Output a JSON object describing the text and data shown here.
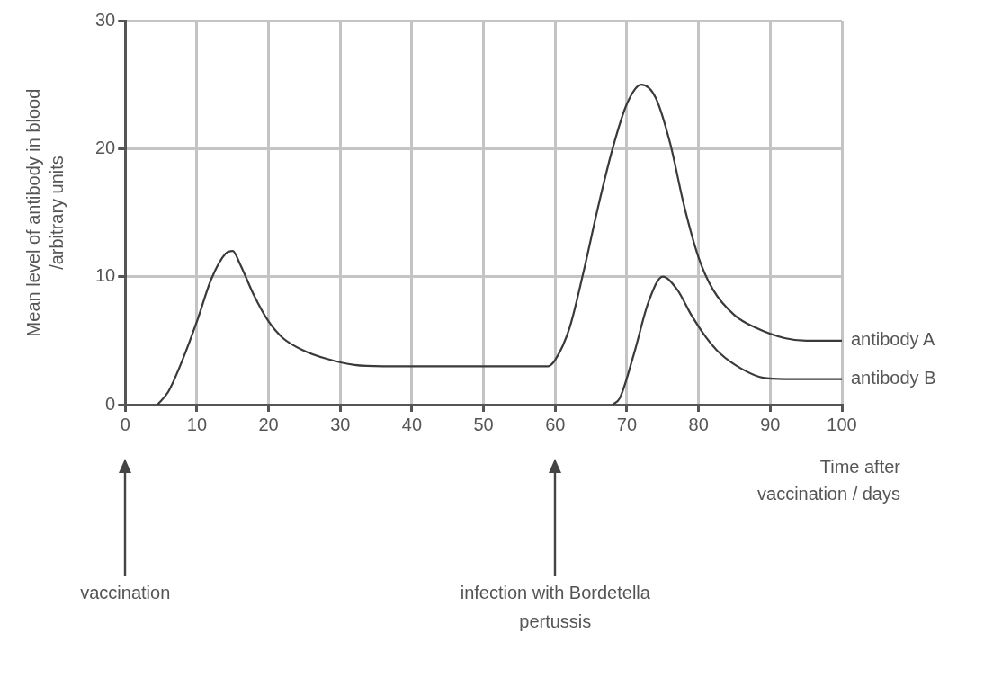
{
  "chart_data": {
    "type": "line",
    "xlabel": "Time after vaccination / days",
    "ylabel": "Mean level of antibody in blood /arbitrary units",
    "xlim": [
      0,
      100
    ],
    "xticks": [
      0,
      10,
      20,
      30,
      40,
      50,
      60,
      70,
      80,
      90,
      100
    ],
    "ylim": [
      0,
      30
    ],
    "yticks": [
      0,
      10,
      20,
      30
    ],
    "grid": true,
    "legend": false,
    "marker": "none",
    "line_style": "solid",
    "series": [
      {
        "name": "antibody A",
        "color": "#3a3a3a",
        "x": [
          4.5,
          6,
          8,
          10,
          12,
          14,
          15,
          16,
          18,
          20,
          22,
          25,
          28,
          32,
          36,
          45,
          55,
          59,
          60,
          62,
          64,
          66,
          68,
          70,
          72,
          74,
          76,
          78,
          80,
          82,
          85,
          88,
          92,
          95,
          100
        ],
        "values": [
          0,
          1,
          3.5,
          6.5,
          9.8,
          11.8,
          12,
          11,
          8.5,
          6.5,
          5.2,
          4.2,
          3.6,
          3.1,
          3,
          3,
          3,
          3,
          3.5,
          6,
          10.5,
          15.5,
          20,
          23.5,
          25,
          24,
          20.5,
          15.5,
          11.5,
          9,
          7,
          6,
          5.2,
          5,
          5
        ]
      },
      {
        "name": "antibody B",
        "color": "#3a3a3a",
        "x": [
          68,
          69,
          71,
          73,
          75,
          77,
          79,
          81,
          83,
          86,
          89,
          92,
          100
        ],
        "values": [
          0,
          0.5,
          4,
          8,
          10,
          9,
          7,
          5.3,
          4,
          2.8,
          2.1,
          2,
          2
        ]
      }
    ],
    "annotations": [
      "vaccination",
      "infection with Bordetella pertussis"
    ]
  }
}
